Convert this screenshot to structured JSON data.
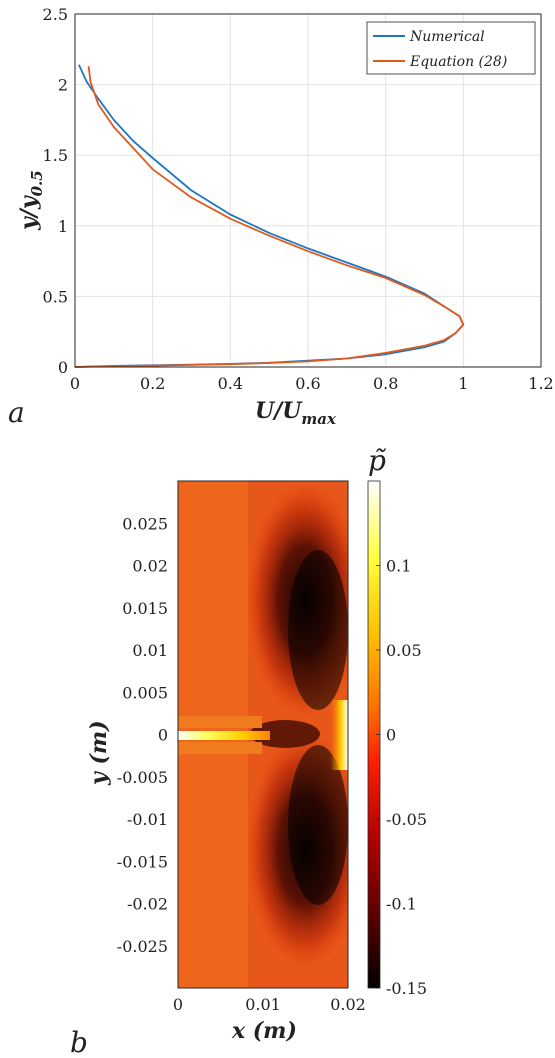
{
  "chart_data": [
    {
      "type": "line",
      "panel_label": "a",
      "xlabel": "U/U",
      "xlabel_sub": "max",
      "ylabel": "y/y",
      "ylabel_sub": "0.5",
      "xlim": [
        0,
        1.2
      ],
      "ylim": [
        0,
        2.5
      ],
      "xticks": [
        "0",
        "0.2",
        "0.4",
        "0.6",
        "0.8",
        "1",
        "1.2"
      ],
      "yticks": [
        "0",
        "0.5",
        "1",
        "1.5",
        "2",
        "2.5"
      ],
      "grid": true,
      "legend": "top-right",
      "series": [
        {
          "name": "Numerical",
          "color": "#1f77c4",
          "x": [
            0.0,
            0.1,
            0.2,
            0.3,
            0.4,
            0.5,
            0.6,
            0.7,
            0.8,
            0.9,
            0.95,
            0.98,
            1.0,
            0.99,
            0.95,
            0.9,
            0.8,
            0.7,
            0.6,
            0.5,
            0.4,
            0.3,
            0.2,
            0.15,
            0.1,
            0.06,
            0.03,
            0.01
          ],
          "y": [
            0.0,
            0.008,
            0.012,
            0.016,
            0.022,
            0.03,
            0.045,
            0.06,
            0.09,
            0.14,
            0.18,
            0.24,
            0.3,
            0.36,
            0.43,
            0.52,
            0.64,
            0.74,
            0.84,
            0.95,
            1.08,
            1.25,
            1.48,
            1.6,
            1.75,
            1.9,
            2.02,
            2.14
          ]
        },
        {
          "name": "Equation (28)",
          "color": "#e05a1e",
          "x": [
            0.0,
            0.1,
            0.2,
            0.3,
            0.4,
            0.5,
            0.6,
            0.7,
            0.8,
            0.9,
            0.95,
            0.98,
            1.0,
            0.99,
            0.95,
            0.9,
            0.8,
            0.7,
            0.6,
            0.5,
            0.4,
            0.3,
            0.2,
            0.15,
            0.1,
            0.06,
            0.04,
            0.035
          ],
          "y": [
            0.0,
            0.006,
            0.01,
            0.015,
            0.02,
            0.028,
            0.04,
            0.06,
            0.1,
            0.15,
            0.19,
            0.24,
            0.3,
            0.36,
            0.43,
            0.51,
            0.63,
            0.72,
            0.82,
            0.93,
            1.05,
            1.2,
            1.4,
            1.55,
            1.7,
            1.86,
            2.02,
            2.13
          ]
        }
      ]
    },
    {
      "type": "heatmap",
      "panel_label": "b",
      "xlabel": "x (m)",
      "ylabel": "y (m)",
      "colorbar_title": "p̃",
      "xlim": [
        0,
        0.02
      ],
      "ylim": [
        -0.03,
        0.03
      ],
      "xticks": [
        "0",
        "0.01",
        "0.02"
      ],
      "yticks": [
        "0.025",
        "0.02",
        "0.015",
        "0.01",
        "0.005",
        "0",
        "-0.005",
        "-0.01",
        "-0.015",
        "-0.02",
        "-0.025"
      ],
      "colorbar_range": [
        -0.15,
        0.15
      ],
      "colorbar_ticks": [
        "0.1",
        "0.05",
        "0",
        "-0.05",
        "-0.1",
        "-0.15"
      ],
      "colormap": [
        "#000000",
        "#5a0000",
        "#b40000",
        "#ff2000",
        "#ff7000",
        "#ffc000",
        "#ffff40",
        "#ffffff"
      ]
    }
  ]
}
